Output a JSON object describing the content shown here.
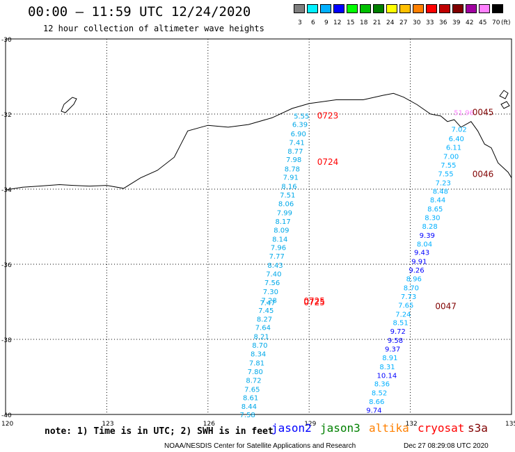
{
  "header": {
    "title": "00:00 – 11:59 UTC 12/24/2020",
    "subtitle": "12 hour collection of altimeter wave heights"
  },
  "scale": {
    "labels": [
      "3",
      "6",
      "9",
      "12",
      "15",
      "18",
      "21",
      "24",
      "27",
      "30",
      "33",
      "36",
      "39",
      "42",
      "45",
      "70"
    ],
    "unit": "(ft)",
    "colors": [
      "#7f7f7f",
      "#00f0ff",
      "#00b0ff",
      "#0000ff",
      "#00ff00",
      "#00c000",
      "#008000",
      "#ffff00",
      "#ffc000",
      "#ff8000",
      "#ff0000",
      "#c00000",
      "#800000",
      "#a000a0",
      "#ff80ff",
      "#000000"
    ]
  },
  "map": {
    "lat_labels": [
      "-30",
      "-32",
      "-34",
      "-36",
      "-38",
      "-40"
    ],
    "lon_labels": [
      "120",
      "123",
      "126",
      "129",
      "132",
      "135"
    ],
    "times": [
      {
        "t": "0723",
        "lat": -32.05,
        "lon": 128.95,
        "color": "#ff0000"
      },
      {
        "t": "0724",
        "lat": -33.28,
        "lon": 128.95,
        "color": "#ff0000"
      },
      {
        "t": "0725",
        "lat": -36.98,
        "lon": 128.55,
        "color": "#ff0000"
      },
      {
        "t": "0725",
        "lat": -37.02,
        "lon": 128.55,
        "color": "#ff0000"
      },
      {
        "t": "0045",
        "lat": -31.95,
        "lon": 133.55,
        "color": "#800000"
      },
      {
        "t": "0046",
        "lat": -33.6,
        "lon": 133.55,
        "color": "#800000"
      },
      {
        "t": "0047",
        "lat": -37.12,
        "lon": 132.45,
        "color": "#800000"
      }
    ],
    "track_west": [
      {
        "v": "5.55",
        "lat": -32.05
      },
      {
        "v": "6.39",
        "lat": -32.27
      },
      {
        "v": "6.90",
        "lat": -32.52
      },
      {
        "v": "7.41",
        "lat": -32.75
      },
      {
        "v": "8.77",
        "lat": -32.98
      },
      {
        "v": "7.98",
        "lat": -33.2
      },
      {
        "v": "8.78",
        "lat": -33.45
      },
      {
        "v": "7.91",
        "lat": -33.68
      },
      {
        "v": "8.16",
        "lat": -33.92
      },
      {
        "v": "7.51",
        "lat": -34.15
      },
      {
        "v": "8.06",
        "lat": -34.38
      },
      {
        "v": "7.99",
        "lat": -34.62
      },
      {
        "v": "8.17",
        "lat": -34.85
      },
      {
        "v": "8.09",
        "lat": -35.08
      },
      {
        "v": "8.14",
        "lat": -35.32
      },
      {
        "v": "7.96",
        "lat": -35.55
      },
      {
        "v": "7.77",
        "lat": -35.78
      },
      {
        "v": "8.43",
        "lat": -36.02
      },
      {
        "v": "7.40",
        "lat": -36.25
      },
      {
        "v": "7.56",
        "lat": -36.48
      },
      {
        "v": "7.30",
        "lat": -36.72
      },
      {
        "v": "7.28",
        "lat": -36.95
      },
      {
        "v": "7.47",
        "lat": -37.02
      },
      {
        "v": "7.45",
        "lat": -37.22
      },
      {
        "v": "8.27",
        "lat": -37.45
      },
      {
        "v": "7.64",
        "lat": -37.68
      },
      {
        "v": "8.21",
        "lat": -37.92
      },
      {
        "v": "8.70",
        "lat": -38.15
      },
      {
        "v": "8.34",
        "lat": -38.38
      },
      {
        "v": "7.81",
        "lat": -38.62
      },
      {
        "v": "7.80",
        "lat": -38.85
      },
      {
        "v": "8.72",
        "lat": -39.08
      },
      {
        "v": "7.65",
        "lat": -39.32
      },
      {
        "v": "8.61",
        "lat": -39.55
      },
      {
        "v": "8.44",
        "lat": -39.78
      },
      {
        "v": "7.58",
        "lat": -40.0
      }
    ],
    "track_east": [
      {
        "v": "51.96",
        "lat": -31.95,
        "color": "#ff80ff"
      },
      {
        "v": "7.02",
        "lat": -32.4,
        "color": "#00b0ff"
      },
      {
        "v": "6.40",
        "lat": -32.65,
        "color": "#00b0ff"
      },
      {
        "v": "6.11",
        "lat": -32.88,
        "color": "#00b0ff"
      },
      {
        "v": "7.00",
        "lat": -33.12,
        "color": "#00b0ff"
      },
      {
        "v": "7.55",
        "lat": -33.35,
        "color": "#00b0ff"
      },
      {
        "v": "7.55",
        "lat": -33.58,
        "color": "#00b0ff"
      },
      {
        "v": "7.23",
        "lat": -33.82,
        "color": "#00b0ff"
      },
      {
        "v": "8.48",
        "lat": -34.05,
        "color": "#00b0ff"
      },
      {
        "v": "8.44",
        "lat": -34.28,
        "color": "#00b0ff"
      },
      {
        "v": "8.65",
        "lat": -34.52,
        "color": "#00b0ff"
      },
      {
        "v": "8.30",
        "lat": -34.75,
        "color": "#00b0ff"
      },
      {
        "v": "8.28",
        "lat": -34.98,
        "color": "#00b0ff"
      },
      {
        "v": "9.39",
        "lat": -35.22,
        "color": "#0000ff"
      },
      {
        "v": "8.04",
        "lat": -35.45,
        "color": "#00b0ff"
      },
      {
        "v": "9.43",
        "lat": -35.68,
        "color": "#0000ff"
      },
      {
        "v": "9.91",
        "lat": -35.92,
        "color": "#0000ff"
      },
      {
        "v": "9.26",
        "lat": -36.15,
        "color": "#0000ff"
      },
      {
        "v": "8.96",
        "lat": -36.38,
        "color": "#00b0ff"
      },
      {
        "v": "8.70",
        "lat": -36.62,
        "color": "#00b0ff"
      },
      {
        "v": "7.73",
        "lat": -36.85,
        "color": "#00b0ff"
      },
      {
        "v": "7.65",
        "lat": -37.08,
        "color": "#00b0ff"
      },
      {
        "v": "7.24",
        "lat": -37.32,
        "color": "#00b0ff"
      },
      {
        "v": "8.51",
        "lat": -37.55,
        "color": "#00b0ff"
      },
      {
        "v": "9.72",
        "lat": -37.78,
        "color": "#0000ff"
      },
      {
        "v": "9.58",
        "lat": -38.02,
        "color": "#0000ff"
      },
      {
        "v": "9.37",
        "lat": -38.25,
        "color": "#0000ff"
      },
      {
        "v": "8.91",
        "lat": -38.48,
        "color": "#00b0ff"
      },
      {
        "v": "8.31",
        "lat": -38.72,
        "color": "#00b0ff"
      },
      {
        "v": "10.14",
        "lat": -38.95,
        "color": "#0000ff"
      },
      {
        "v": "8.36",
        "lat": -39.18,
        "color": "#00b0ff"
      },
      {
        "v": "8.52",
        "lat": -39.42,
        "color": "#00b0ff"
      },
      {
        "v": "8.66",
        "lat": -39.65,
        "color": "#00b0ff"
      },
      {
        "v": "9.74",
        "lat": -39.88,
        "color": "#0000ff"
      }
    ]
  },
  "note": "note: 1) Time is in UTC; 2) SWH is in feet",
  "satellites": [
    {
      "name": "jason2",
      "color": "#0000ff"
    },
    {
      "name": "jason3",
      "color": "#008000"
    },
    {
      "name": "altika",
      "color": "#ff8000"
    },
    {
      "name": "cryosat",
      "color": "#ff0000"
    },
    {
      "name": "s3a",
      "color": "#800000"
    }
  ],
  "footer": {
    "left": "NOAA/NESDIS Center for Satellite Applications and Research",
    "right": "Dec 27 08:29:08 UTC 2020"
  }
}
